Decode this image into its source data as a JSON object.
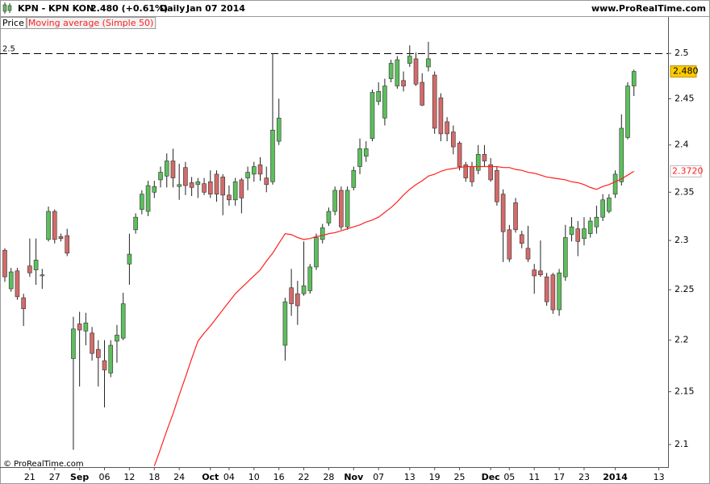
{
  "chart_data": {
    "type": "candlestick",
    "title": "KPN - KPN KON",
    "quote": "2.480 (+0.61%)",
    "period": "Daily",
    "date": "Jan 07 2014",
    "source": "www.ProRealTime.com",
    "copyright": "© ProRealTime.com",
    "log_scale": true,
    "grid": false,
    "ylim": [
      2.079,
      2.541
    ],
    "yticks": [
      2.1,
      2.15,
      2.2,
      2.25,
      2.3,
      2.35,
      2.4,
      2.45,
      2.5
    ],
    "hlines": [
      2.5
    ],
    "categories": [
      null,
      null,
      null,
      null,
      "21",
      null,
      null,
      null,
      "27",
      null,
      null,
      null,
      "Sep",
      null,
      null,
      null,
      "06",
      null,
      null,
      null,
      "12",
      null,
      null,
      null,
      "18",
      null,
      null,
      null,
      "24",
      null,
      null,
      null,
      null,
      "Oct",
      null,
      null,
      "04",
      null,
      null,
      null,
      "10",
      null,
      null,
      null,
      "16",
      null,
      null,
      null,
      "22",
      null,
      null,
      null,
      "28",
      null,
      null,
      null,
      "Nov",
      null,
      null,
      null,
      "07",
      null,
      null,
      null,
      null,
      "13",
      null,
      null,
      null,
      "19",
      null,
      null,
      null,
      "25",
      null,
      null,
      null,
      null,
      "Dec",
      null,
      null,
      "05",
      null,
      null,
      null,
      "11",
      null,
      null,
      null,
      "17",
      null,
      null,
      null,
      "23",
      null,
      null,
      null,
      null,
      "2014",
      null,
      null,
      null,
      null,
      null,
      null,
      "13"
    ],
    "price": {
      "name": "Price",
      "up_color": "#5cbf5c",
      "down_color": "#d46a6a",
      "last_label": "2.480",
      "label_color": "#ffcc00",
      "open": [
        2.29,
        2.251,
        2.269,
        2.242,
        2.274,
        2.27,
        2.264,
        2.301,
        2.33,
        2.304,
        2.305,
        2.182,
        2.216,
        2.209,
        2.207,
        2.191,
        2.18,
        2.168,
        2.199,
        2.202,
        2.276,
        2.311,
        2.332,
        2.33,
        2.35,
        2.363,
        2.367,
        2.383,
        2.356,
        2.376,
        2.36,
        2.358,
        2.359,
        2.361,
        2.369,
        2.366,
        2.347,
        2.342,
        2.363,
        2.365,
        2.369,
        2.379,
        2.365,
        2.361,
        2.404,
        2.195,
        2.252,
        2.246,
        2.246,
        2.249,
        2.273,
        2.301,
        2.318,
        2.33,
        2.352,
        2.314,
        2.355,
        2.377,
        2.388,
        2.407,
        2.447,
        2.429,
        2.472,
        2.464,
        2.47,
        2.489,
        2.494,
        2.468,
        2.485,
        2.476,
        2.451,
        2.425,
        2.414,
        2.402,
        2.379,
        2.377,
        2.373,
        2.39,
        2.379,
        2.373,
        2.348,
        2.311,
        2.339,
        2.306,
        2.292,
        2.27,
        2.269,
        2.263,
        2.265,
        2.23,
        2.263,
        2.306,
        2.312,
        2.302,
        2.307,
        2.314,
        2.324,
        2.33,
        2.348,
        2.361,
        2.408,
        2.464,
        null,
        null,
        null,
        null
      ],
      "high": [
        2.292,
        2.272,
        2.272,
        2.246,
        2.302,
        2.302,
        2.271,
        2.335,
        2.332,
        2.307,
        2.312,
        2.223,
        2.228,
        2.227,
        2.213,
        2.2,
        2.2,
        2.2,
        2.215,
        2.247,
        2.307,
        2.328,
        2.352,
        2.362,
        2.362,
        2.377,
        2.391,
        2.396,
        2.38,
        2.382,
        2.366,
        2.365,
        2.365,
        2.373,
        2.373,
        2.369,
        2.357,
        2.365,
        2.365,
        2.377,
        2.382,
        2.387,
        2.377,
        2.5,
        2.45,
        2.242,
        2.271,
        2.259,
        2.299,
        2.276,
        2.307,
        2.317,
        2.334,
        2.356,
        2.356,
        2.356,
        2.377,
        2.407,
        2.404,
        2.46,
        2.468,
        2.472,
        2.493,
        2.497,
        2.48,
        2.509,
        2.501,
        2.478,
        2.513,
        2.48,
        2.456,
        2.43,
        2.421,
        2.404,
        2.382,
        2.382,
        2.4,
        2.4,
        2.386,
        2.377,
        2.353,
        2.316,
        2.344,
        2.31,
        2.315,
        2.276,
        2.3,
        2.267,
        2.267,
        2.271,
        2.316,
        2.324,
        2.32,
        2.324,
        2.324,
        2.336,
        2.348,
        2.348,
        2.373,
        2.433,
        2.468,
        2.482,
        null,
        null,
        null,
        null
      ],
      "low": [
        2.258,
        2.248,
        2.24,
        2.214,
        2.263,
        2.255,
        2.251,
        2.299,
        2.297,
        2.299,
        2.284,
        2.095,
        2.155,
        2.195,
        2.18,
        2.155,
        2.135,
        2.164,
        2.178,
        2.2,
        2.255,
        2.307,
        2.327,
        2.325,
        2.344,
        2.355,
        2.355,
        2.355,
        2.342,
        2.347,
        2.346,
        2.344,
        2.347,
        2.344,
        2.34,
        2.326,
        2.336,
        2.336,
        2.328,
        2.352,
        2.361,
        2.362,
        2.35,
        2.358,
        2.4,
        2.18,
        2.224,
        2.215,
        2.244,
        2.246,
        2.27,
        2.297,
        2.315,
        2.326,
        2.311,
        2.311,
        2.352,
        2.369,
        2.382,
        2.404,
        2.443,
        2.421,
        2.468,
        2.461,
        2.458,
        2.485,
        2.464,
        2.442,
        2.48,
        2.412,
        2.404,
        2.404,
        2.39,
        2.373,
        2.361,
        2.356,
        2.369,
        2.377,
        2.361,
        2.336,
        2.278,
        2.278,
        2.308,
        2.292,
        2.278,
        2.246,
        2.263,
        2.234,
        2.226,
        2.224,
        2.259,
        2.299,
        2.284,
        2.295,
        2.303,
        2.307,
        2.32,
        2.328,
        2.344,
        2.357,
        2.406,
        2.453,
        null,
        null,
        null,
        null
      ],
      "close": [
        2.263,
        2.268,
        2.243,
        2.231,
        2.267,
        2.28,
        2.265,
        2.33,
        2.301,
        2.302,
        2.287,
        2.211,
        2.21,
        2.217,
        2.187,
        2.183,
        2.171,
        2.195,
        2.205,
        2.236,
        2.286,
        2.324,
        2.348,
        2.357,
        2.356,
        2.371,
        2.383,
        2.365,
        2.358,
        2.357,
        2.355,
        2.361,
        2.35,
        2.348,
        2.348,
        2.347,
        2.342,
        2.361,
        2.344,
        2.371,
        2.377,
        2.369,
        2.358,
        2.416,
        2.429,
        2.238,
        2.236,
        2.234,
        2.254,
        2.273,
        2.303,
        2.313,
        2.33,
        2.352,
        2.314,
        2.352,
        2.373,
        2.396,
        2.396,
        2.457,
        2.458,
        2.464,
        2.489,
        2.493,
        2.464,
        2.497,
        2.466,
        2.443,
        2.494,
        2.418,
        2.412,
        2.412,
        2.398,
        2.377,
        2.365,
        2.361,
        2.39,
        2.383,
        2.363,
        2.34,
        2.309,
        2.281,
        2.311,
        2.297,
        2.281,
        2.264,
        2.265,
        2.238,
        2.23,
        2.267,
        2.303,
        2.314,
        2.299,
        2.312,
        2.32,
        2.324,
        2.342,
        2.344,
        2.369,
        2.418,
        2.464,
        2.48,
        null,
        null,
        null,
        null
      ]
    },
    "series": [
      {
        "name": "Moving average (Simple 50)",
        "color": "#ff2020",
        "last_label": "2.3720",
        "values": [
          null,
          null,
          null,
          null,
          null,
          null,
          null,
          null,
          null,
          null,
          null,
          null,
          null,
          null,
          null,
          null,
          null,
          null,
          null,
          null,
          null,
          null,
          null,
          null,
          2.08,
          2.096,
          2.113,
          2.129,
          2.147,
          2.164,
          2.182,
          2.199,
          2.207,
          2.214,
          2.222,
          2.23,
          2.238,
          2.246,
          2.252,
          2.258,
          2.264,
          2.27,
          2.279,
          2.287,
          2.297,
          2.307,
          2.306,
          2.303,
          2.301,
          2.302,
          2.304,
          2.305,
          2.307,
          2.308,
          2.31,
          2.312,
          2.314,
          2.316,
          2.319,
          2.321,
          2.324,
          2.329,
          2.334,
          2.34,
          2.347,
          2.353,
          2.358,
          2.362,
          2.367,
          2.369,
          2.372,
          2.374,
          2.375,
          2.376,
          2.377,
          2.377,
          2.377,
          2.377,
          2.377,
          2.377,
          2.376,
          2.376,
          2.374,
          2.373,
          2.371,
          2.37,
          2.368,
          2.366,
          2.365,
          2.364,
          2.363,
          2.361,
          2.36,
          2.358,
          2.355,
          2.353,
          2.356,
          2.358,
          2.361,
          2.364,
          2.368,
          2.372,
          null,
          null,
          null,
          null
        ]
      }
    ]
  }
}
